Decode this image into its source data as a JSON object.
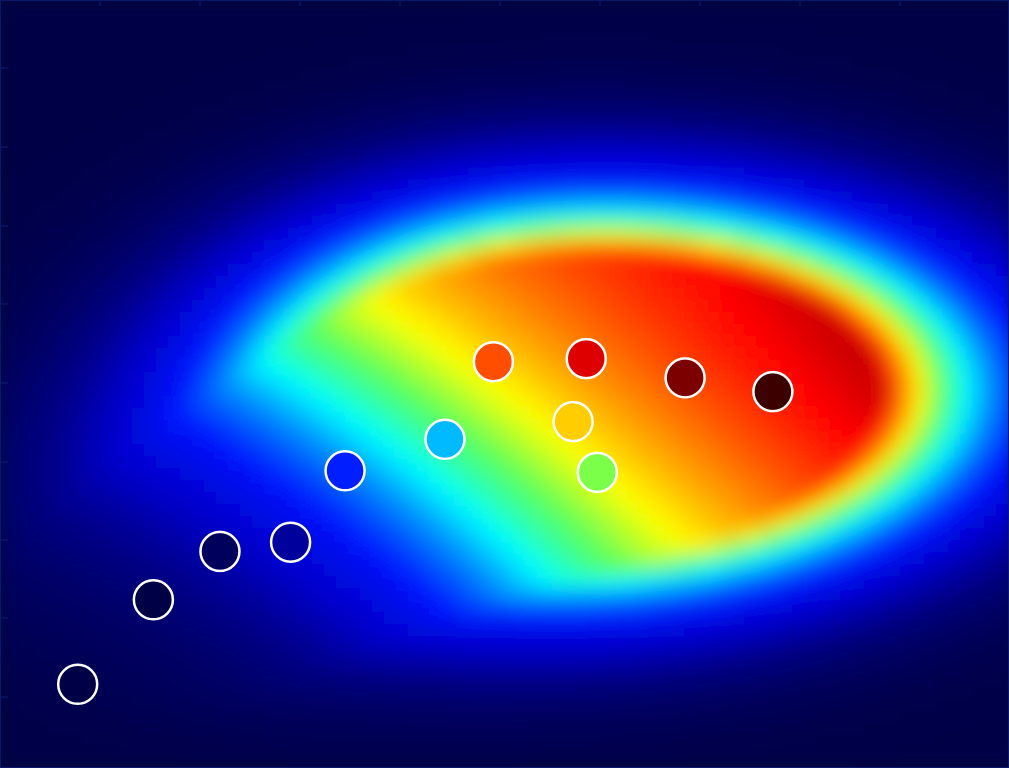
{
  "chart_data": {
    "type": "heatmap",
    "title": "",
    "xlabel": "",
    "ylabel": "",
    "grid": false,
    "legend": "none",
    "colormap": "jet",
    "xlim": [
      0,
      1
    ],
    "ylim": [
      0,
      1
    ],
    "points": [
      {
        "x": 0.077,
        "y": 0.109,
        "value": 0.0
      },
      {
        "x": 0.152,
        "y": 0.219,
        "value": 0.0
      },
      {
        "x": 0.218,
        "y": 0.282,
        "value": 0.02
      },
      {
        "x": 0.288,
        "y": 0.294,
        "value": 0.08
      },
      {
        "x": 0.342,
        "y": 0.387,
        "value": 0.25
      },
      {
        "x": 0.441,
        "y": 0.428,
        "value": 0.4
      },
      {
        "x": 0.592,
        "y": 0.385,
        "value": 0.6
      },
      {
        "x": 0.568,
        "y": 0.451,
        "value": 0.72
      },
      {
        "x": 0.489,
        "y": 0.529,
        "value": 0.82
      },
      {
        "x": 0.581,
        "y": 0.533,
        "value": 0.9
      },
      {
        "x": 0.679,
        "y": 0.508,
        "value": 0.96
      },
      {
        "x": 0.766,
        "y": 0.49,
        "value": 1.0
      }
    ],
    "colors": {
      "background": "#000a3a",
      "marker_stroke": "#ffffff"
    }
  }
}
